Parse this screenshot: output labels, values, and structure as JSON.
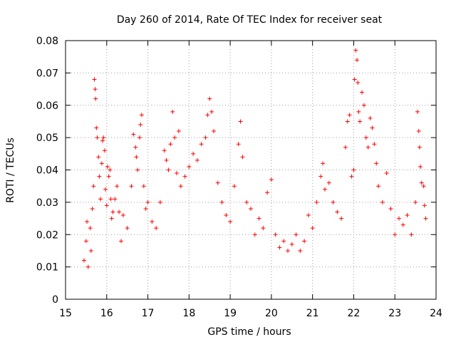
{
  "chart_data": {
    "type": "scatter",
    "title": "Day 260 of 2014, Rate Of TEC Index for receiver seat",
    "xlabel": "GPS time / hours",
    "ylabel": "ROTI / TECUs",
    "xlim": [
      15,
      24
    ],
    "ylim": [
      0,
      0.08
    ],
    "x_ticks": [
      15,
      16,
      17,
      18,
      19,
      20,
      21,
      22,
      23,
      24
    ],
    "y_ticks": [
      0,
      0.01,
      0.02,
      0.03,
      0.04,
      0.05,
      0.06,
      0.07,
      0.08
    ],
    "x_tick_labels": [
      "15",
      "16",
      "17",
      "18",
      "19",
      "20",
      "21",
      "22",
      "23",
      "24"
    ],
    "y_tick_labels": [
      "0",
      "0.01",
      "0.02",
      "0.03",
      "0.04",
      "0.05",
      "0.06",
      "0.07",
      "0.08"
    ],
    "grid": true,
    "marker": "+",
    "color": "#ff0000",
    "series": [
      {
        "name": "ROTI",
        "points": [
          [
            15.45,
            0.012
          ],
          [
            15.5,
            0.018
          ],
          [
            15.52,
            0.024
          ],
          [
            15.55,
            0.01
          ],
          [
            15.6,
            0.022
          ],
          [
            15.62,
            0.015
          ],
          [
            15.65,
            0.028
          ],
          [
            15.68,
            0.035
          ],
          [
            15.7,
            0.068
          ],
          [
            15.72,
            0.065
          ],
          [
            15.73,
            0.062
          ],
          [
            15.75,
            0.053
          ],
          [
            15.77,
            0.05
          ],
          [
            15.8,
            0.044
          ],
          [
            15.82,
            0.038
          ],
          [
            15.85,
            0.031
          ],
          [
            15.88,
            0.042
          ],
          [
            15.9,
            0.049
          ],
          [
            15.92,
            0.05
          ],
          [
            15.95,
            0.046
          ],
          [
            15.97,
            0.034
          ],
          [
            16.0,
            0.029
          ],
          [
            16.02,
            0.041
          ],
          [
            16.05,
            0.038
          ],
          [
            16.08,
            0.04
          ],
          [
            16.1,
            0.031
          ],
          [
            16.12,
            0.025
          ],
          [
            16.15,
            0.027
          ],
          [
            16.2,
            0.031
          ],
          [
            16.25,
            0.035
          ],
          [
            16.3,
            0.027
          ],
          [
            16.35,
            0.018
          ],
          [
            16.4,
            0.026
          ],
          [
            16.5,
            0.022
          ],
          [
            16.6,
            0.035
          ],
          [
            16.65,
            0.051
          ],
          [
            16.7,
            0.047
          ],
          [
            16.72,
            0.044
          ],
          [
            16.75,
            0.04
          ],
          [
            16.8,
            0.05
          ],
          [
            16.82,
            0.054
          ],
          [
            16.85,
            0.057
          ],
          [
            16.9,
            0.035
          ],
          [
            16.95,
            0.028
          ],
          [
            17.0,
            0.03
          ],
          [
            17.1,
            0.024
          ],
          [
            17.2,
            0.022
          ],
          [
            17.3,
            0.03
          ],
          [
            17.4,
            0.046
          ],
          [
            17.45,
            0.043
          ],
          [
            17.5,
            0.04
          ],
          [
            17.55,
            0.048
          ],
          [
            17.6,
            0.058
          ],
          [
            17.65,
            0.05
          ],
          [
            17.7,
            0.039
          ],
          [
            17.75,
            0.052
          ],
          [
            17.8,
            0.035
          ],
          [
            17.9,
            0.038
          ],
          [
            18.0,
            0.041
          ],
          [
            18.1,
            0.045
          ],
          [
            18.2,
            0.043
          ],
          [
            18.3,
            0.048
          ],
          [
            18.4,
            0.05
          ],
          [
            18.45,
            0.057
          ],
          [
            18.5,
            0.062
          ],
          [
            18.55,
            0.058
          ],
          [
            18.6,
            0.052
          ],
          [
            18.7,
            0.036
          ],
          [
            18.8,
            0.03
          ],
          [
            18.9,
            0.026
          ],
          [
            19.0,
            0.024
          ],
          [
            19.1,
            0.035
          ],
          [
            19.2,
            0.048
          ],
          [
            19.25,
            0.055
          ],
          [
            19.3,
            0.044
          ],
          [
            19.4,
            0.03
          ],
          [
            19.5,
            0.028
          ],
          [
            19.6,
            0.02
          ],
          [
            19.7,
            0.025
          ],
          [
            19.8,
            0.022
          ],
          [
            19.9,
            0.033
          ],
          [
            20.0,
            0.037
          ],
          [
            20.1,
            0.02
          ],
          [
            20.2,
            0.016
          ],
          [
            20.3,
            0.018
          ],
          [
            20.4,
            0.015
          ],
          [
            20.5,
            0.017
          ],
          [
            20.6,
            0.02
          ],
          [
            20.7,
            0.015
          ],
          [
            20.8,
            0.018
          ],
          [
            20.9,
            0.026
          ],
          [
            21.0,
            0.022
          ],
          [
            21.1,
            0.03
          ],
          [
            21.2,
            0.038
          ],
          [
            21.25,
            0.042
          ],
          [
            21.3,
            0.034
          ],
          [
            21.4,
            0.036
          ],
          [
            21.5,
            0.03
          ],
          [
            21.6,
            0.027
          ],
          [
            21.7,
            0.025
          ],
          [
            21.8,
            0.047
          ],
          [
            21.85,
            0.055
          ],
          [
            21.9,
            0.057
          ],
          [
            21.95,
            0.038
          ],
          [
            22.0,
            0.04
          ],
          [
            22.02,
            0.068
          ],
          [
            22.05,
            0.077
          ],
          [
            22.08,
            0.074
          ],
          [
            22.1,
            0.067
          ],
          [
            22.12,
            0.058
          ],
          [
            22.15,
            0.055
          ],
          [
            22.2,
            0.064
          ],
          [
            22.25,
            0.06
          ],
          [
            22.3,
            0.05
          ],
          [
            22.35,
            0.047
          ],
          [
            22.4,
            0.056
          ],
          [
            22.45,
            0.053
          ],
          [
            22.5,
            0.048
          ],
          [
            22.55,
            0.042
          ],
          [
            22.6,
            0.035
          ],
          [
            22.7,
            0.03
          ],
          [
            22.8,
            0.039
          ],
          [
            22.9,
            0.028
          ],
          [
            23.0,
            0.02
          ],
          [
            23.1,
            0.025
          ],
          [
            23.2,
            0.023
          ],
          [
            23.3,
            0.026
          ],
          [
            23.4,
            0.02
          ],
          [
            23.5,
            0.03
          ],
          [
            23.55,
            0.058
          ],
          [
            23.58,
            0.052
          ],
          [
            23.6,
            0.047
          ],
          [
            23.62,
            0.041
          ],
          [
            23.65,
            0.036
          ],
          [
            23.7,
            0.035
          ],
          [
            23.72,
            0.029
          ],
          [
            23.75,
            0.025
          ]
        ]
      }
    ]
  }
}
